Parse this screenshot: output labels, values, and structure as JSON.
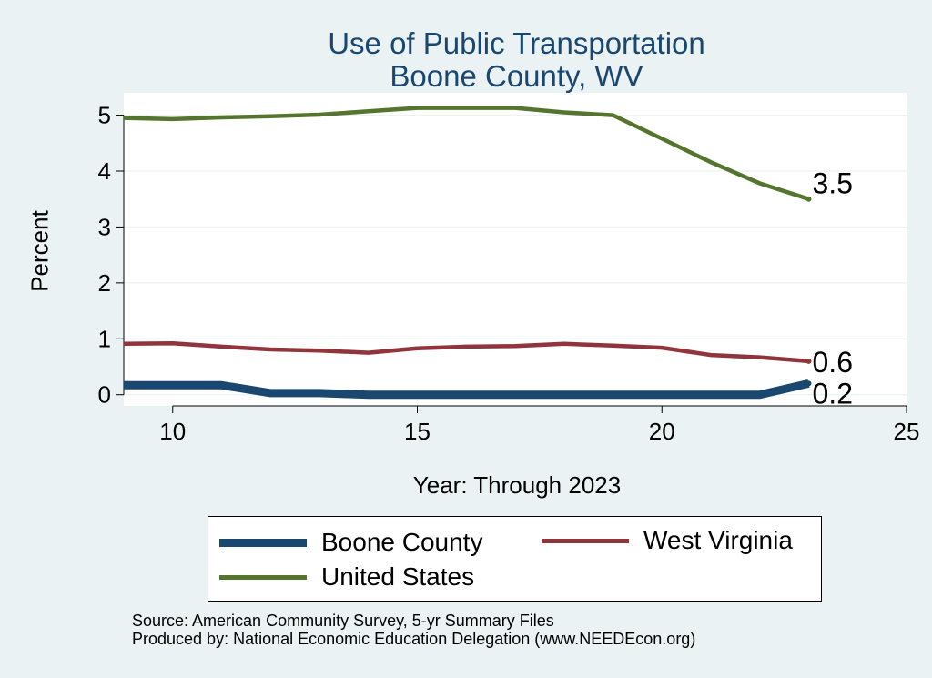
{
  "chart_data": {
    "type": "line",
    "title": "Use of Public Transportation",
    "subtitle": "Boone County, WV",
    "xlabel": "Year: Through 2023",
    "ylabel": "Percent",
    "xlim": [
      9,
      25
    ],
    "ylim": [
      -0.2,
      5.4
    ],
    "xticks": [
      10,
      15,
      20,
      25
    ],
    "yticks": [
      0,
      1,
      2,
      3,
      4,
      5
    ],
    "grid": true,
    "legend_position": "bottom",
    "x": [
      9,
      10,
      11,
      12,
      13,
      14,
      15,
      16,
      17,
      18,
      19,
      20,
      21,
      22,
      23
    ],
    "series": [
      {
        "name": "Boone County",
        "color": "#1a476f",
        "width": 9,
        "values": [
          0.17,
          0.17,
          0.17,
          0.03,
          0.03,
          0.0,
          0.0,
          0.0,
          0.0,
          0.0,
          0.0,
          0.0,
          0.0,
          0.0,
          0.2
        ],
        "end_label": "0.2"
      },
      {
        "name": "West Virginia",
        "color": "#90353b",
        "width": 4.5,
        "values": [
          0.91,
          0.92,
          0.86,
          0.81,
          0.79,
          0.75,
          0.83,
          0.86,
          0.87,
          0.91,
          0.88,
          0.84,
          0.71,
          0.67,
          0.6
        ],
        "end_label": "0.6"
      },
      {
        "name": "United States",
        "color": "#55752f",
        "width": 4.5,
        "values": [
          4.95,
          4.93,
          4.96,
          4.98,
          5.01,
          5.07,
          5.13,
          5.13,
          5.13,
          5.05,
          5.0,
          4.58,
          4.16,
          3.78,
          3.5
        ],
        "end_label": "3.5"
      }
    ],
    "source_lines": [
      "Source: American Community Survey, 5-yr Summary Files",
      "Produced by: National Economic Education Delegation (www.NEEDEcon.org)"
    ]
  }
}
